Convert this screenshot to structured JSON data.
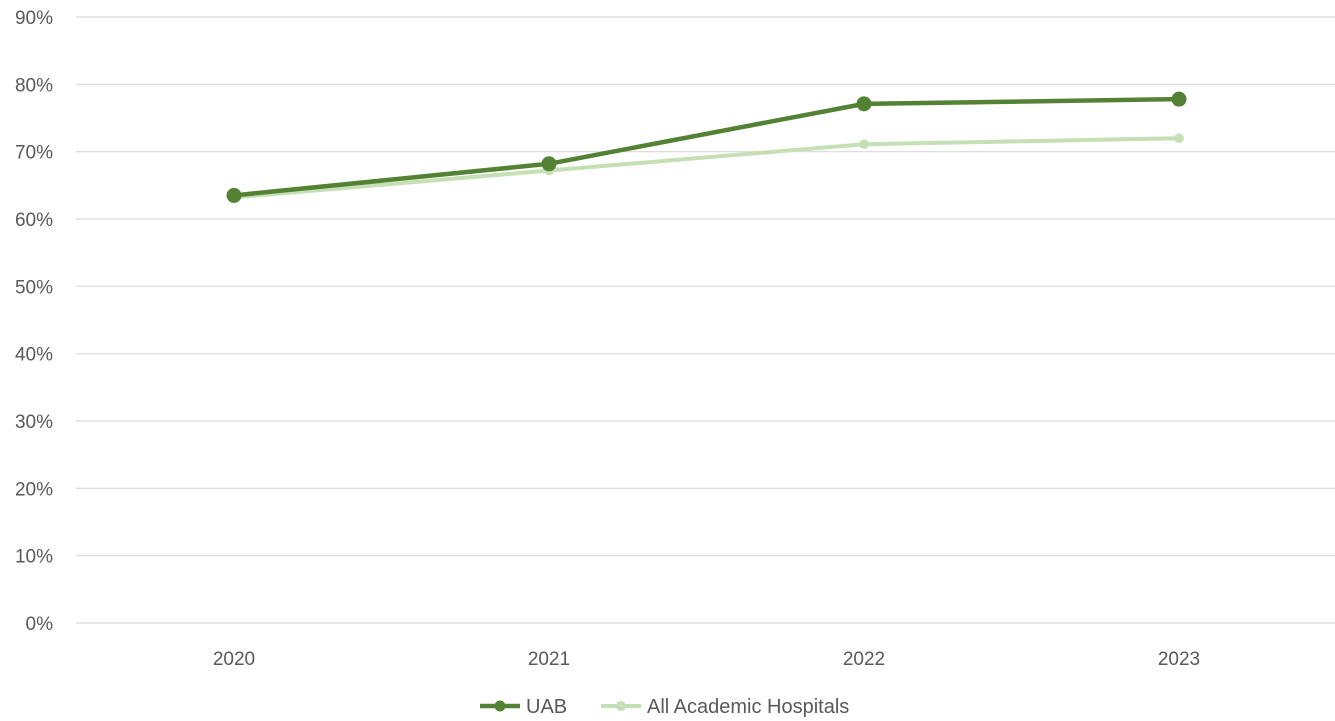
{
  "chart_data": {
    "type": "line",
    "categories": [
      "2020",
      "2021",
      "2022",
      "2023"
    ],
    "series": [
      {
        "name": "UAB",
        "values": [
          0.635,
          0.682,
          0.771,
          0.778
        ],
        "color": "#548235",
        "marker": "circle"
      },
      {
        "name": "All Academic Hospitals",
        "values": [
          0.632,
          0.672,
          0.711,
          0.72
        ],
        "color": "#c5e0b4",
        "marker": "circle"
      }
    ],
    "y_ticks": [
      "0%",
      "10%",
      "20%",
      "30%",
      "40%",
      "50%",
      "60%",
      "70%",
      "80%",
      "90%"
    ],
    "ylim": [
      0,
      0.9
    ],
    "grid": true,
    "legend_position": "bottom",
    "gridline_color": "#d9d9d9",
    "axis_text_color": "#595959"
  }
}
